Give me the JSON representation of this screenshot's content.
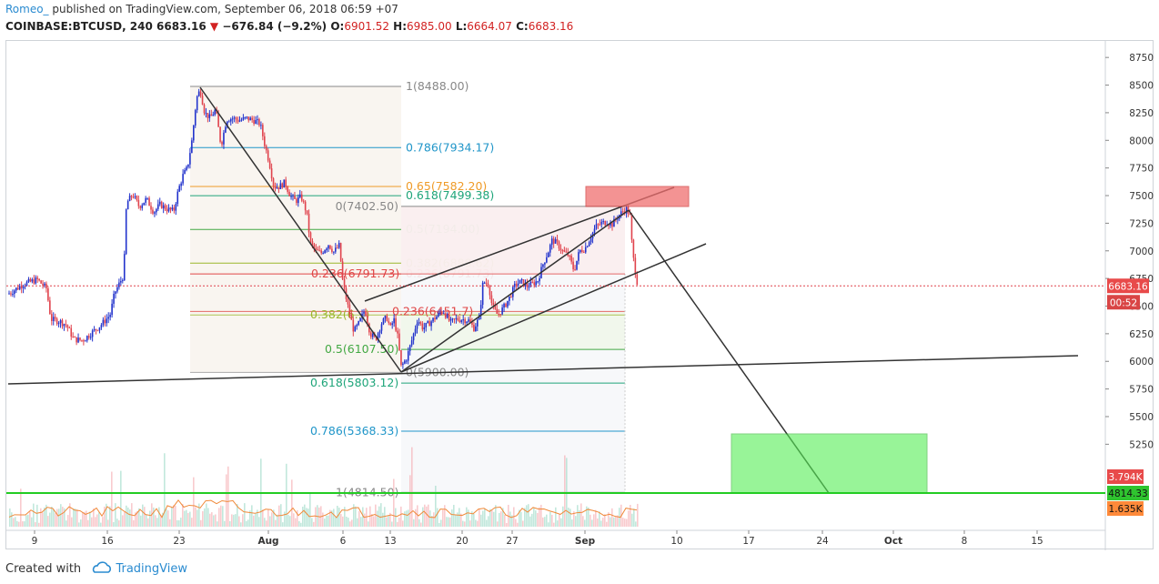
{
  "header": {
    "author": "Romeo_",
    "published_text": "published on TradingView.com, September 06, 2018 06:59 +07",
    "symbol": "COINBASE:BTCUSD, 240",
    "last_price": "6683.16",
    "change_arrow": "▼",
    "change": "−676.84 (−9.2%)",
    "open_label": "O:",
    "open": "6901.52",
    "high_label": "H:",
    "high": "6985.00",
    "low_label": "L:",
    "low": "6664.07",
    "close_label": "C:",
    "close": "6683.16"
  },
  "footer": {
    "created_with": "Created with",
    "brand": "TradingView"
  },
  "colors": {
    "up": "#2233cc",
    "down": "#e0434d",
    "support_green": "#22cc22",
    "resistance_zone": "#f07070",
    "target_zone": "#55ee55",
    "price_badge": "#e84a4a",
    "volume_badge": "#ff8a3a"
  },
  "chart_data": {
    "type": "candlestick",
    "price_axis": {
      "ticks": [
        "8750.00",
        "8500.00",
        "8250.00",
        "8000.00",
        "7750.00",
        "7500.00",
        "7250.00",
        "7000.00",
        "6750.00",
        "6500.00",
        "6250.00",
        "6000.00",
        "5750.00",
        "5500.00",
        "5250.00"
      ],
      "range": [
        4650,
        8920
      ]
    },
    "time_axis": {
      "ticks": [
        "9",
        "16",
        "23",
        "Aug",
        "6",
        "13",
        "20",
        "27",
        "Sep",
        "10",
        "17",
        "24",
        "Oct",
        "8",
        "15"
      ]
    },
    "badges": {
      "last_price": "6683.16",
      "countdown": "00:52",
      "volume_sma": "3.794K",
      "support_level": "4814.33",
      "volume": "1.635K"
    },
    "fib_retracement_1": [
      {
        "label": "1(8488.00)",
        "price": 8488.0,
        "color": "#888888"
      },
      {
        "label": "0.786(7934.17)",
        "price": 7934.17,
        "color": "#2196c9"
      },
      {
        "label": "0.65(7582.20)",
        "price": 7582.2,
        "color": "#ef9b28"
      },
      {
        "label": "0.618(7499.38)",
        "price": 7499.38,
        "color": "#1fa57a"
      },
      {
        "label": "0.5(7194.00)",
        "price": 7194.0,
        "color": "#43a843"
      },
      {
        "label": "0.382(6888.62)",
        "price": 6888.62,
        "color": "#9ab72b"
      },
      {
        "label": "0.236(6791.73)",
        "price": 6791.73,
        "color": "#e04646"
      },
      {
        "label": "0(7402.50)",
        "price": 7402.5,
        "color": "#888888"
      }
    ],
    "fib_retracement_2": [
      {
        "label": "0.236(6451.7)",
        "price": 6451.7,
        "color": "#e04646"
      },
      {
        "label": "0.382(6...)",
        "price": 6420.0,
        "color": "#9ab72b"
      },
      {
        "label": "0.5(6107.50)",
        "price": 6107.5,
        "color": "#43a843"
      },
      {
        "label": "0(5900.00)",
        "price": 5900.0,
        "color": "#888888"
      },
      {
        "label": "0.618(5803.12)",
        "price": 5803.12,
        "color": "#1fa57a"
      },
      {
        "label": "0.786(5368.33)",
        "price": 5368.33,
        "color": "#2196c9"
      },
      {
        "label": "1(4814.50)",
        "price": 4814.5,
        "color": "#888888"
      }
    ],
    "support_line": 4814.33,
    "last_price_line": 6683.16
  }
}
